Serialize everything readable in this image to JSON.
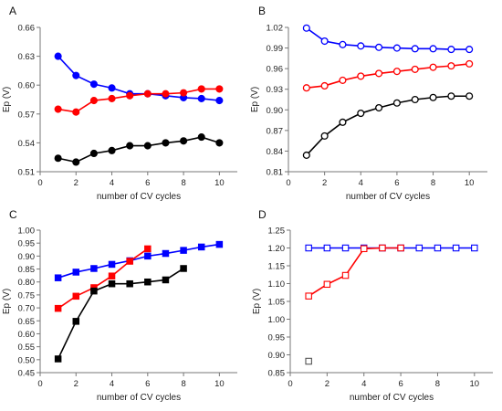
{
  "chart_data": [
    {
      "panel": "A",
      "type": "line",
      "xlabel": "number of CV cycles",
      "ylabel": "Ep (V)",
      "xlim": [
        0,
        11
      ],
      "ylim": [
        0.51,
        0.66
      ],
      "xticks": [
        0,
        2,
        4,
        6,
        8,
        10
      ],
      "yticks": [
        "0.51",
        "0.54",
        "0.57",
        "0.60",
        "0.63",
        "0.66"
      ],
      "marker": "circle",
      "filled": true,
      "series": [
        {
          "color": "#0000ff",
          "x": [
            1,
            2,
            3,
            4,
            5,
            6,
            7,
            8,
            9,
            10
          ],
          "y": [
            0.63,
            0.61,
            0.601,
            0.597,
            0.591,
            0.591,
            0.589,
            0.587,
            0.586,
            0.584
          ]
        },
        {
          "color": "#ff0000",
          "x": [
            1,
            2,
            3,
            4,
            5,
            6,
            7,
            8,
            9,
            10
          ],
          "y": [
            0.575,
            0.572,
            0.584,
            0.586,
            0.589,
            0.591,
            0.591,
            0.592,
            0.596,
            0.596
          ]
        },
        {
          "color": "#000000",
          "x": [
            1,
            2,
            3,
            4,
            5,
            6,
            7,
            8,
            9,
            10
          ],
          "y": [
            0.524,
            0.52,
            0.529,
            0.532,
            0.537,
            0.537,
            0.54,
            0.542,
            0.546,
            0.54
          ]
        }
      ]
    },
    {
      "panel": "B",
      "type": "line",
      "xlabel": "number of CV cycles",
      "ylabel": "Ep (V)",
      "xlim": [
        0,
        11
      ],
      "ylim": [
        0.81,
        1.02
      ],
      "xticks": [
        0,
        2,
        4,
        6,
        8,
        10
      ],
      "yticks": [
        "0.81",
        "0.84",
        "0.87",
        "0.90",
        "0.93",
        "0.96",
        "0.99",
        "1.02"
      ],
      "marker": "circle",
      "filled": false,
      "series": [
        {
          "color": "#0000ff",
          "x": [
            1,
            2,
            3,
            4,
            5,
            6,
            7,
            8,
            9,
            10
          ],
          "y": [
            1.019,
            1.0,
            0.995,
            0.993,
            0.991,
            0.99,
            0.989,
            0.989,
            0.988,
            0.988
          ]
        },
        {
          "color": "#ff0000",
          "x": [
            1,
            2,
            3,
            4,
            5,
            6,
            7,
            8,
            9,
            10
          ],
          "y": [
            0.932,
            0.935,
            0.943,
            0.949,
            0.953,
            0.956,
            0.959,
            0.962,
            0.964,
            0.967
          ]
        },
        {
          "color": "#000000",
          "x": [
            1,
            2,
            3,
            4,
            5,
            6,
            7,
            8,
            9,
            10
          ],
          "y": [
            0.834,
            0.862,
            0.882,
            0.895,
            0.903,
            0.91,
            0.915,
            0.918,
            0.92,
            0.92
          ]
        }
      ]
    },
    {
      "panel": "C",
      "type": "line",
      "xlabel": "number of CV cycles",
      "ylabel": "Ep (V)",
      "xlim": [
        0,
        11
      ],
      "ylim": [
        0.45,
        1.0
      ],
      "xticks": [
        0,
        2,
        4,
        6,
        8,
        10
      ],
      "yticks": [
        "0.45",
        "0.50",
        "0.55",
        "0.60",
        "0.65",
        "0.70",
        "0.75",
        "0.80",
        "0.85",
        "0.90",
        "0.95",
        "1.00"
      ],
      "marker": "square",
      "filled": true,
      "series": [
        {
          "color": "#0000ff",
          "x": [
            1,
            2,
            3,
            4,
            5,
            6,
            7,
            8,
            9,
            10
          ],
          "y": [
            0.816,
            0.838,
            0.852,
            0.868,
            0.882,
            0.9,
            0.91,
            0.922,
            0.935,
            0.945
          ]
        },
        {
          "color": "#ff0000",
          "x": [
            1,
            2,
            3,
            4,
            5,
            6
          ],
          "y": [
            0.698,
            0.745,
            0.778,
            0.823,
            0.88,
            0.928
          ]
        },
        {
          "color": "#000000",
          "x": [
            1,
            2,
            3,
            4,
            5,
            6,
            7,
            8
          ],
          "y": [
            0.503,
            0.648,
            0.765,
            0.793,
            0.793,
            0.8,
            0.808,
            0.852
          ]
        }
      ]
    },
    {
      "panel": "D",
      "type": "line",
      "xlabel": "number of CV cycles",
      "ylabel": "Ep (V)",
      "xlim": [
        0,
        11
      ],
      "ylim": [
        0.85,
        1.25
      ],
      "xticks": [
        0,
        2,
        4,
        6,
        8,
        10
      ],
      "yticks": [
        "0.85",
        "0.90",
        "0.95",
        "1.00",
        "1.05",
        "1.10",
        "1.15",
        "1.20",
        "1.25"
      ],
      "marker": "square",
      "filled": false,
      "series": [
        {
          "color": "#0000ff",
          "x": [
            1,
            2,
            3,
            4,
            5,
            6,
            7,
            8,
            9,
            10
          ],
          "y": [
            1.2,
            1.2,
            1.2,
            1.2,
            1.2,
            1.2,
            1.2,
            1.2,
            1.2,
            1.2
          ]
        },
        {
          "color": "#ff0000",
          "x": [
            1,
            2,
            3,
            4,
            5,
            6
          ],
          "y": [
            1.065,
            1.098,
            1.123,
            1.198,
            1.2,
            1.2
          ]
        },
        {
          "color": "#555555",
          "x": [
            1
          ],
          "y": [
            0.882
          ]
        }
      ]
    }
  ]
}
